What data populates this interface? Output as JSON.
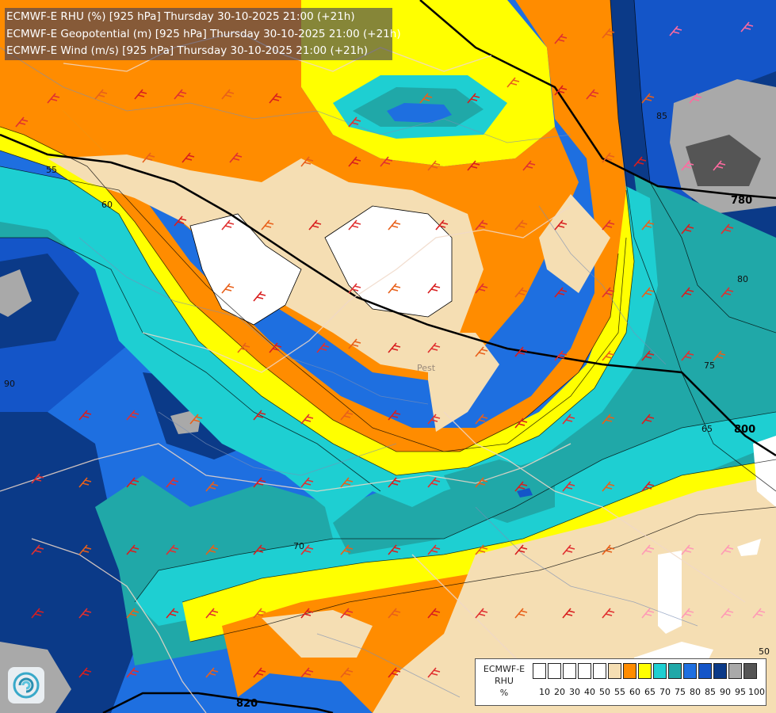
{
  "header": {
    "line1": "ECMWF-E RHU (%) [925 hPa] Thursday 30-10-2025 21:00 (+21h)",
    "line2": "ECMWF-E Geopotential (m) [925 hPa] Thursday 30-10-2025 21:00 (+21h)",
    "line3": "ECMWF-E Wind (m/s) [925 hPa] Thursday 30-10-2025 21:00 (+21h)"
  },
  "legend": {
    "line1": "ECMWF-E",
    "line2": "RHU",
    "line3": "%",
    "ticks": [
      "10",
      "20",
      "30",
      "40",
      "50",
      "55",
      "60",
      "65",
      "70",
      "75",
      "80",
      "85",
      "90",
      "95",
      "100"
    ],
    "colors": [
      "#ffffff",
      "#ffffff",
      "#ffffff",
      "#ffffff",
      "#ffffff",
      "#f5deb3",
      "#ff8c00",
      "#ffff00",
      "#1ecfd2",
      "#20a8a8",
      "#1e6fe0",
      "#1455c8",
      "#0b3a88",
      "#a9a9a9",
      "#555555"
    ]
  },
  "geopotential_labels": [
    "780",
    "800",
    "820"
  ],
  "rhu_contour_labels": [
    "55",
    "60",
    "65",
    "70",
    "75",
    "80",
    "85",
    "90",
    "50"
  ],
  "place_labels": [
    "Pest"
  ],
  "logo": {
    "icon": "ecmwf-logo-icon"
  }
}
